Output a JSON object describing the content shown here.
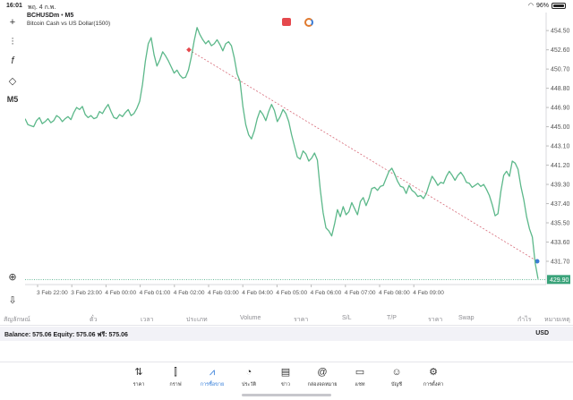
{
  "status_bar": {
    "time": "16:01",
    "date": "พฤ. 4 ก.พ.",
    "battery": "96%"
  },
  "toolbar": {
    "items": [
      {
        "name": "crosshair",
        "glyph": "+"
      },
      {
        "name": "indicators",
        "glyph": "⫶"
      },
      {
        "name": "function",
        "glyph": "f"
      },
      {
        "name": "objects",
        "glyph": "◇"
      },
      {
        "name": "timeframe",
        "label": "M5"
      }
    ],
    "bottom": [
      {
        "name": "zoom",
        "glyph": "⊕"
      },
      {
        "name": "export",
        "glyph": "⇩"
      }
    ]
  },
  "chart": {
    "symbol": "BCHUSDm",
    "timeframe": "M5",
    "description": "Bitcoin Cash vs US Dollar(1500)",
    "current_price": "429.90"
  },
  "chart_data": {
    "type": "line",
    "series_color": "#5cb88a",
    "y_ticks": [
      "454.50",
      "452.60",
      "450.70",
      "448.80",
      "446.90",
      "445.00",
      "443.10",
      "441.20",
      "439.30",
      "437.40",
      "435.50",
      "433.60",
      "431.70"
    ],
    "ylim": [
      429.4,
      455.4
    ],
    "x_ticks": [
      "3 Feb 22:00",
      "3 Feb 23:00",
      "4 Feb 00:00",
      "4 Feb 01:00",
      "4 Feb 02:00",
      "4 Feb 03:00",
      "4 Feb 04:00",
      "4 Feb 05:00",
      "4 Feb 06:00",
      "4 Feb 07:00",
      "4 Feb 08:00",
      "4 Feb 09:00"
    ],
    "values": [
      445.8,
      445.2,
      445.1,
      445.0,
      445.6,
      445.9,
      445.3,
      445.5,
      445.8,
      445.4,
      445.6,
      446.1,
      445.9,
      445.5,
      445.8,
      446.0,
      445.7,
      446.4,
      446.9,
      446.7,
      447.0,
      446.2,
      445.9,
      446.1,
      445.8,
      445.9,
      446.5,
      446.3,
      446.8,
      447.2,
      446.5,
      445.9,
      445.8,
      446.2,
      446.0,
      446.4,
      446.7,
      446.1,
      446.3,
      446.8,
      447.5,
      449.2,
      451.5,
      453.2,
      453.8,
      452.1,
      451.0,
      451.6,
      452.4,
      452.0,
      451.5,
      450.9,
      450.3,
      450.6,
      450.1,
      449.8,
      449.9,
      450.6,
      451.9,
      453.5,
      454.8,
      454.1,
      453.6,
      453.2,
      453.5,
      453.0,
      453.2,
      453.6,
      453.1,
      452.5,
      453.2,
      453.4,
      453.0,
      451.8,
      450.2,
      449.5,
      447.0,
      445.2,
      444.2,
      443.8,
      444.6,
      445.8,
      446.6,
      446.2,
      445.6,
      446.5,
      447.2,
      446.6,
      445.5,
      446.0,
      446.7,
      446.3,
      445.5,
      444.2,
      443.1,
      442.0,
      441.8,
      442.6,
      442.3,
      441.6,
      441.9,
      442.4,
      441.7,
      438.8,
      436.5,
      435.0,
      434.7,
      434.2,
      435.4,
      436.8,
      436.1,
      437.1,
      436.3,
      436.6,
      437.5,
      436.9,
      436.3,
      437.6,
      438.0,
      437.2,
      437.9,
      438.9,
      439.0,
      438.7,
      439.1,
      439.2,
      439.9,
      440.6,
      440.9,
      440.3,
      439.6,
      439.1,
      439.0,
      438.4,
      439.2,
      438.7,
      438.5,
      438.1,
      438.2,
      437.9,
      438.4,
      439.3,
      440.1,
      439.7,
      439.2,
      439.5,
      439.4,
      440.1,
      440.6,
      440.2,
      439.7,
      440.2,
      440.5,
      440.1,
      439.5,
      439.4,
      439.0,
      439.2,
      439.4,
      439.1,
      439.3,
      438.8,
      438.2,
      437.3,
      436.2,
      436.4,
      438.6,
      440.2,
      440.6,
      440.1,
      441.6,
      441.4,
      440.8,
      439.1,
      437.8,
      436.1,
      434.9,
      434.1,
      431.5,
      429.95
    ],
    "trendline": {
      "start_price": 452.6,
      "end_price": 431.7,
      "color": "#d66a78"
    },
    "current_price_line": {
      "price": 429.9,
      "color": "#3aa37a"
    }
  },
  "columns": [
    "สัญลักษณ์",
    "ตั๋ว",
    "เวลา",
    "ประเภท",
    "Volume",
    "ราคา",
    "S/L",
    "T/P",
    "ราคา",
    "Swap",
    "กำไร",
    "หมายเหตุ"
  ],
  "account": {
    "summary": "Balance: 575.06 Equity: 575.06 ฟรี: 575.06",
    "currency": "USD"
  },
  "tabs": [
    {
      "name": "quotes",
      "label": "ราคา",
      "glyph": "⇅"
    },
    {
      "name": "chart",
      "label": "กราฟ",
      "glyph": "⫿"
    },
    {
      "name": "trade",
      "label": "การซื้อขาย",
      "glyph": "⩘",
      "active": true
    },
    {
      "name": "history",
      "label": "ประวัติ",
      "glyph": "◔"
    },
    {
      "name": "news",
      "label": "ข่าว",
      "glyph": "▤"
    },
    {
      "name": "mailbox",
      "label": "กล่องจดหมาย",
      "glyph": "@"
    },
    {
      "name": "chat",
      "label": "แชท",
      "glyph": "▭"
    },
    {
      "name": "accounts",
      "label": "บัญชี",
      "glyph": "☺"
    },
    {
      "name": "settings",
      "label": "การตั้งค่า",
      "glyph": "⚙"
    }
  ]
}
